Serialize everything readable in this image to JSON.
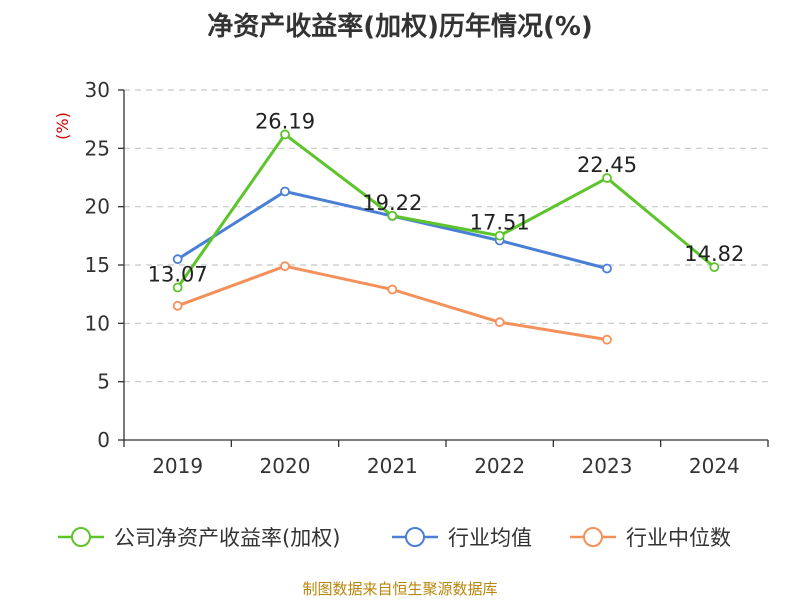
{
  "chart_data": {
    "type": "line",
    "title": "净资产收益率(加权)历年情况(%)",
    "ylabel": "(%)",
    "xlabel": "",
    "categories": [
      "2019",
      "2020",
      "2021",
      "2022",
      "2023",
      "2024"
    ],
    "ylim": [
      0,
      30
    ],
    "yticks": [
      0,
      5,
      10,
      15,
      20,
      25,
      30
    ],
    "grid": true,
    "legend": "bottom",
    "series": [
      {
        "name": "公司净资产收益率(加权)",
        "color": "#5ec42c",
        "values": [
          13.07,
          26.19,
          19.22,
          17.51,
          22.45,
          14.82
        ],
        "labels": [
          "13.07",
          "26.19",
          "19.22",
          "17.51",
          "22.45",
          "14.82"
        ]
      },
      {
        "name": "行业均值",
        "color": "#4a7fd6",
        "values": [
          15.5,
          21.3,
          19.2,
          17.1,
          14.7,
          null
        ]
      },
      {
        "name": "行业中位数",
        "color": "#f4905a",
        "values": [
          11.5,
          14.9,
          12.9,
          10.1,
          8.6,
          null
        ]
      }
    ]
  },
  "source": "制图数据来自恒生聚源数据库"
}
